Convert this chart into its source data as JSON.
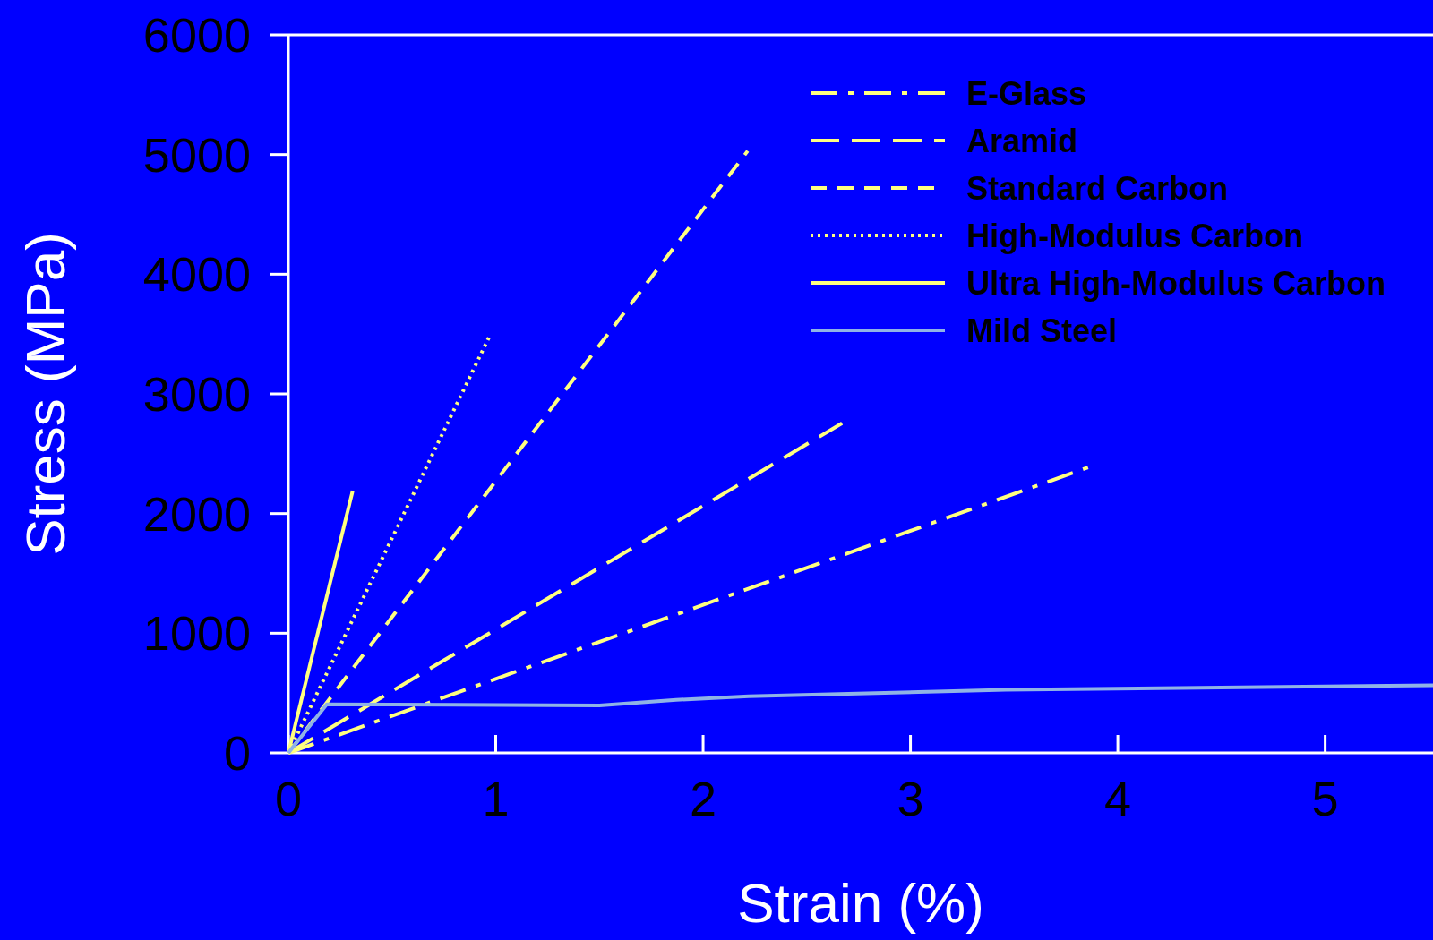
{
  "chart_data": {
    "type": "line",
    "xlabel": "Strain (%)",
    "ylabel": "Stress (MPa)",
    "xlim": [
      0,
      5.52
    ],
    "ylim": [
      0,
      6000
    ],
    "xticks": [
      0,
      1,
      2,
      3,
      4,
      5
    ],
    "yticks": [
      0,
      1000,
      2000,
      3000,
      4000,
      5000,
      6000
    ],
    "grid": false,
    "legend": "top right",
    "series": [
      {
        "name": "E-Glass",
        "color": "#ffff80",
        "line_style": "dashdot",
        "x": [
          0,
          3.88
        ],
        "values": [
          0,
          2400
        ]
      },
      {
        "name": "Aramid",
        "color": "#ffff80",
        "line_style": "longdash",
        "x": [
          0,
          2.67
        ],
        "values": [
          0,
          2755
        ]
      },
      {
        "name": "Standard Carbon",
        "color": "#ffff80",
        "line_style": "dashed",
        "x": [
          0,
          2.215
        ],
        "values": [
          0,
          5030
        ]
      },
      {
        "name": "High-Modulus Carbon",
        "color": "#ffff80",
        "line_style": "dotted",
        "x": [
          0,
          0.975
        ],
        "values": [
          0,
          3500
        ]
      },
      {
        "name": "Ultra High-Modulus Carbon",
        "color": "#ffff80",
        "line_style": "solid",
        "x": [
          0,
          0.31
        ],
        "values": [
          0,
          2190
        ]
      },
      {
        "name": "Mild Steel",
        "color": "#8fb3e6",
        "line_style": "solid",
        "x": [
          0,
          0.185,
          1.5,
          1.87,
          2.22,
          3.46,
          5.52
        ],
        "values": [
          0,
          405,
          397,
          443,
          473,
          527,
          565
        ]
      }
    ]
  }
}
